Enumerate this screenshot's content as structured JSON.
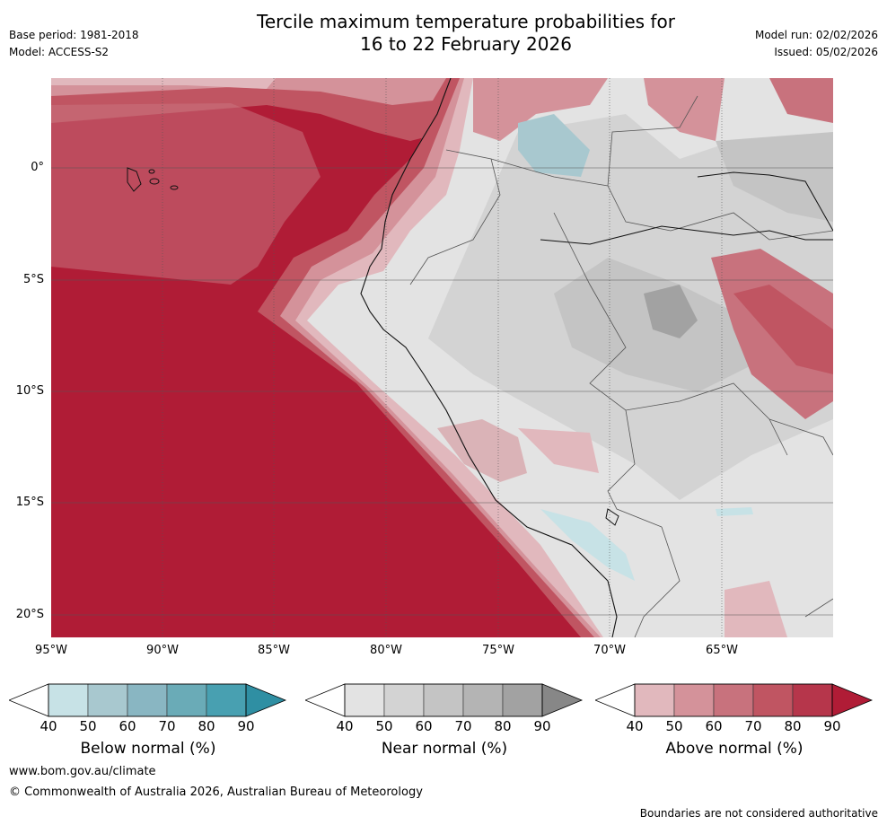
{
  "header": {
    "title_line1": "Tercile maximum temperature probabilities for",
    "title_line2": "16 to 22 February 2026",
    "base_period": "Base period: 1981-2018",
    "model": "Model: ACCESS-S2",
    "model_run": "Model run: 02/02/2026",
    "issued": "Issued: 05/02/2026"
  },
  "axes": {
    "lat_labels": [
      "0°",
      "5°S",
      "10°S",
      "15°S",
      "20°S"
    ],
    "lon_labels": [
      "95°W",
      "90°W",
      "85°W",
      "80°W",
      "75°W",
      "70°W",
      "65°W"
    ]
  },
  "colorbars": [
    {
      "title": "Below normal (%)",
      "ticks": [
        "40",
        "50",
        "60",
        "70",
        "80",
        "90"
      ],
      "colors": [
        "#ffffff",
        "#c7e2e6",
        "#a8c8cf",
        "#89b6c2",
        "#6aabb7",
        "#48a0b1",
        "#2f8fa3"
      ]
    },
    {
      "title": "Near normal (%)",
      "ticks": [
        "40",
        "50",
        "60",
        "70",
        "80",
        "90"
      ],
      "colors": [
        "#ffffff",
        "#e3e3e3",
        "#d3d3d3",
        "#c4c4c4",
        "#b4b4b4",
        "#a2a2a2",
        "#878787"
      ]
    },
    {
      "title": "Above normal (%)",
      "ticks": [
        "40",
        "50",
        "60",
        "70",
        "80",
        "90"
      ],
      "colors": [
        "#ffffff",
        "#e1b8bd",
        "#d4929a",
        "#c8727d",
        "#c05562",
        "#b6364b",
        "#b01c36"
      ]
    }
  ],
  "footer": {
    "website": "www.bom.gov.au/climate",
    "copyright": "© Commonwealth of Australia 2026, Australian Bureau of Meteorology",
    "disclaimer": "Boundaries are not considered authoritative"
  }
}
